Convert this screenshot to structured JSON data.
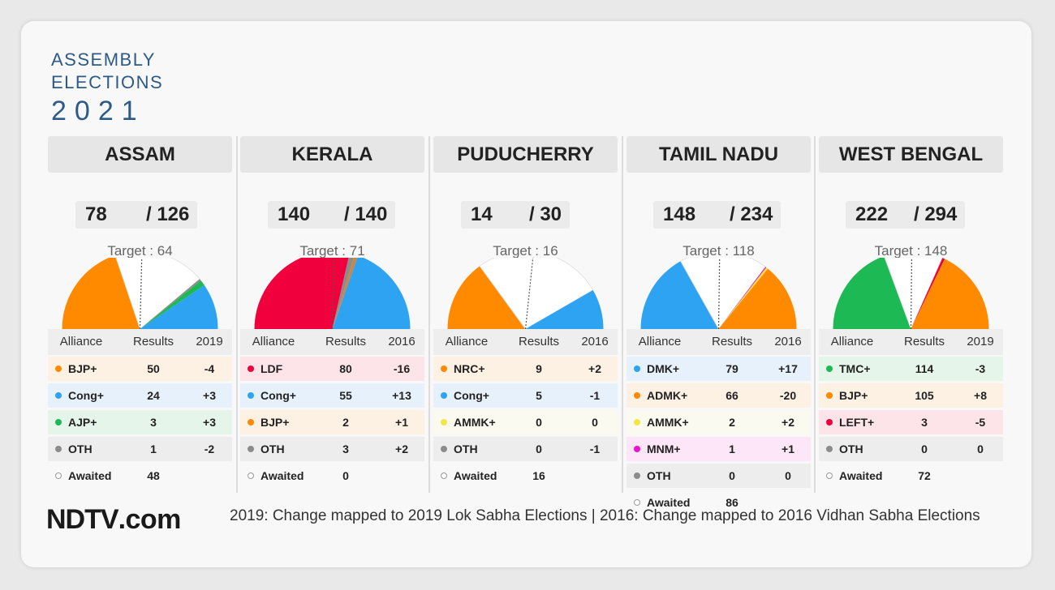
{
  "brand": {
    "line1": "ASSEMBLY",
    "line2": "ELECTIONS",
    "year": "2021"
  },
  "footer": {
    "logo_ndtv": "NDTV",
    "logo_dotcom": ".com",
    "note": "2019: Change mapped to 2019 Lok Sabha Elections | 2016: Change mapped to 2016 Vidhan Sabha Elections"
  },
  "table_header": {
    "alliance": "Alliance",
    "results": "Results"
  },
  "colors": {
    "orange": "#ff8a00",
    "blue": "#2ea3f2",
    "green": "#1db954",
    "grey": "#8c8c8c",
    "red": "#f0003c",
    "yellow": "#f2e640",
    "magenta": "#ee0fcf",
    "brown": "#cd853f"
  },
  "chart_data": [
    {
      "type": "pie",
      "state": "ASSAM",
      "won": "78",
      "total": "/ 126",
      "target_label": "Target : 64",
      "target": 64,
      "seats": 126,
      "change_label": "2019",
      "rows": [
        {
          "name": "BJP+",
          "results": "50",
          "change": "-4",
          "color": "#ff8a00",
          "bg": "#fdf1e3"
        },
        {
          "name": "Cong+",
          "results": "24",
          "change": "+3",
          "color": "#2ea3f2",
          "bg": "#e7f1fb"
        },
        {
          "name": "AJP+",
          "results": "3",
          "change": "+3",
          "color": "#1db954",
          "bg": "#e6f5e9"
        },
        {
          "name": "OTH",
          "results": "1",
          "change": "-2",
          "color": "#8c8c8c",
          "bg": "#ededed"
        },
        {
          "name": "Awaited",
          "results": "48",
          "change": "",
          "color": "#ffffff",
          "bg": "",
          "hollow": true
        }
      ],
      "arc": [
        {
          "value": 50,
          "color": "#ff8a00"
        },
        {
          "value": 48,
          "color": "#ffffff"
        },
        {
          "value": 1,
          "color": "#8c8c8c"
        },
        {
          "value": 3,
          "color": "#1db954"
        },
        {
          "value": 24,
          "color": "#2ea3f2"
        }
      ]
    },
    {
      "type": "pie",
      "state": "KERALA",
      "won": "140",
      "total": "/ 140",
      "target_label": "Target : 71",
      "target": 71,
      "seats": 140,
      "change_label": "2016",
      "rows": [
        {
          "name": "LDF",
          "results": "80",
          "change": "-16",
          "color": "#f0003c",
          "bg": "#fce4e8"
        },
        {
          "name": "Cong+",
          "results": "55",
          "change": "+13",
          "color": "#2ea3f2",
          "bg": "#e7f1fb"
        },
        {
          "name": "BJP+",
          "results": "2",
          "change": "+1",
          "color": "#ff8a00",
          "bg": "#fdf1e3"
        },
        {
          "name": "OTH",
          "results": "3",
          "change": "+2",
          "color": "#8c8c8c",
          "bg": "#ededed"
        },
        {
          "name": "Awaited",
          "results": "0",
          "change": "",
          "color": "#ffffff",
          "bg": "",
          "hollow": true
        }
      ],
      "arc": [
        {
          "value": 80,
          "color": "#f0003c"
        },
        {
          "value": 3,
          "color": "#8c8c8c"
        },
        {
          "value": 2,
          "color": "#cd853f"
        },
        {
          "value": 55,
          "color": "#2ea3f2"
        }
      ]
    },
    {
      "type": "pie",
      "state": "PUDUCHERRY",
      "won": "14",
      "total": "/ 30",
      "target_label": "Target : 16",
      "target": 16,
      "seats": 30,
      "change_label": "2016",
      "rows": [
        {
          "name": "NRC+",
          "results": "9",
          "change": "+2",
          "color": "#ff8a00",
          "bg": "#fdf1e3"
        },
        {
          "name": "Cong+",
          "results": "5",
          "change": "-1",
          "color": "#2ea3f2",
          "bg": "#e7f1fb"
        },
        {
          "name": "AMMK+",
          "results": "0",
          "change": "0",
          "color": "#f2e640",
          "bg": "#fafaf0"
        },
        {
          "name": "OTH",
          "results": "0",
          "change": "-1",
          "color": "#8c8c8c",
          "bg": "#ededed"
        },
        {
          "name": "Awaited",
          "results": "16",
          "change": "",
          "color": "#ffffff",
          "bg": "",
          "hollow": true
        }
      ],
      "arc": [
        {
          "value": 9,
          "color": "#ff8a00"
        },
        {
          "value": 16,
          "color": "#ffffff"
        },
        {
          "value": 5,
          "color": "#2ea3f2"
        }
      ]
    },
    {
      "type": "pie",
      "state": "TAMIL NADU",
      "won": "148",
      "total": "/ 234",
      "target_label": "Target : 118",
      "target": 118,
      "seats": 234,
      "change_label": "2016",
      "rows": [
        {
          "name": "DMK+",
          "results": "79",
          "change": "+17",
          "color": "#2ea3f2",
          "bg": "#e7f1fb"
        },
        {
          "name": "ADMK+",
          "results": "66",
          "change": "-20",
          "color": "#ff8a00",
          "bg": "#fdf1e3"
        },
        {
          "name": "AMMK+",
          "results": "2",
          "change": "+2",
          "color": "#f2e640",
          "bg": "#fafaf0"
        },
        {
          "name": "MNM+",
          "results": "1",
          "change": "+1",
          "color": "#ee0fcf",
          "bg": "#fde6f7"
        },
        {
          "name": "OTH",
          "results": "0",
          "change": "0",
          "color": "#8c8c8c",
          "bg": "#ededed"
        },
        {
          "name": "Awaited",
          "results": "86",
          "change": "",
          "color": "#ffffff",
          "bg": "",
          "hollow": true
        }
      ],
      "arc": [
        {
          "value": 79,
          "color": "#2ea3f2"
        },
        {
          "value": 86,
          "color": "#ffffff"
        },
        {
          "value": 1,
          "color": "#ee0fcf"
        },
        {
          "value": 2,
          "color": "#f2e640"
        },
        {
          "value": 66,
          "color": "#ff8a00"
        }
      ]
    },
    {
      "type": "pie",
      "state": "WEST BENGAL",
      "won": "222",
      "total": "/ 294",
      "target_label": "Target : 148",
      "target": 148,
      "seats": 294,
      "change_label": "2019",
      "rows": [
        {
          "name": "TMC+",
          "results": "114",
          "change": "-3",
          "color": "#1db954",
          "bg": "#e6f5e9"
        },
        {
          "name": "BJP+",
          "results": "105",
          "change": "+8",
          "color": "#ff8a00",
          "bg": "#fdf1e3"
        },
        {
          "name": "LEFT+",
          "results": "3",
          "change": "-5",
          "color": "#f0003c",
          "bg": "#fce4e8"
        },
        {
          "name": "OTH",
          "results": "0",
          "change": "0",
          "color": "#8c8c8c",
          "bg": "#ededed"
        },
        {
          "name": "Awaited",
          "results": "72",
          "change": "",
          "color": "#ffffff",
          "bg": "",
          "hollow": true
        }
      ],
      "arc": [
        {
          "value": 114,
          "color": "#1db954"
        },
        {
          "value": 72,
          "color": "#ffffff"
        },
        {
          "value": 3,
          "color": "#f0003c"
        },
        {
          "value": 105,
          "color": "#ff8a00"
        }
      ]
    }
  ]
}
